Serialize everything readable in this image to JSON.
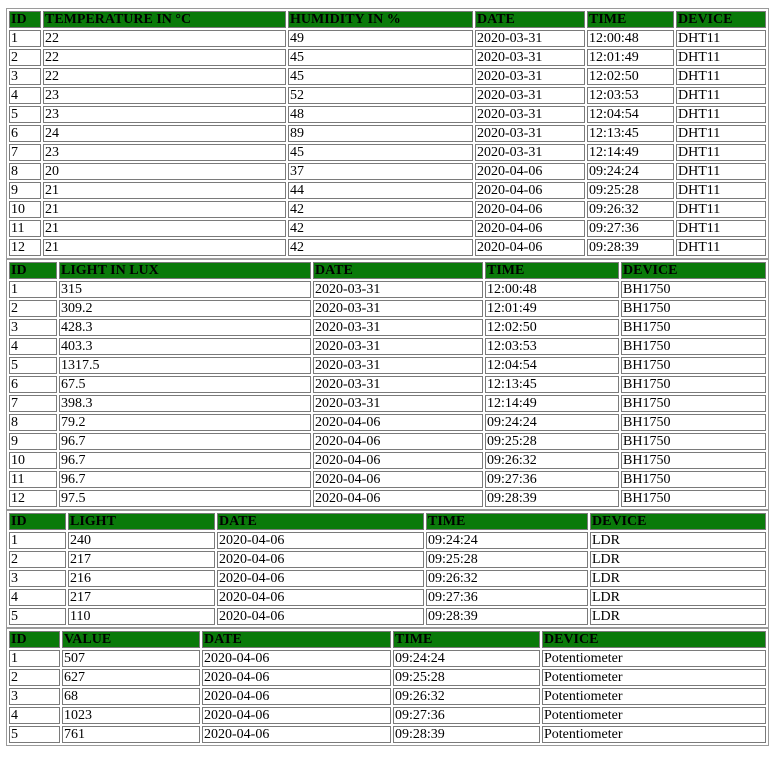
{
  "colors": {
    "header_bg": "#0a7a0a",
    "cell_bg": "#ffffff"
  },
  "tables": [
    {
      "device_type": "dht11",
      "widths": [
        "32px",
        "243px",
        "185px",
        "110px",
        "87px",
        "auto"
      ],
      "headers": [
        "ID",
        "TEMPERATURE IN °C",
        "HUMIDITY IN %",
        "DATE",
        "TIME",
        "DEVICE"
      ],
      "rows": [
        [
          "1",
          "22",
          "49",
          "2020-03-31",
          "12:00:48",
          "DHT11"
        ],
        [
          "2",
          "22",
          "45",
          "2020-03-31",
          "12:01:49",
          "DHT11"
        ],
        [
          "3",
          "22",
          "45",
          "2020-03-31",
          "12:02:50",
          "DHT11"
        ],
        [
          "4",
          "23",
          "52",
          "2020-03-31",
          "12:03:53",
          "DHT11"
        ],
        [
          "5",
          "23",
          "48",
          "2020-03-31",
          "12:04:54",
          "DHT11"
        ],
        [
          "6",
          "24",
          "89",
          "2020-03-31",
          "12:13:45",
          "DHT11"
        ],
        [
          "7",
          "23",
          "45",
          "2020-03-31",
          "12:14:49",
          "DHT11"
        ],
        [
          "8",
          "20",
          "37",
          "2020-04-06",
          "09:24:24",
          "DHT11"
        ],
        [
          "9",
          "21",
          "44",
          "2020-04-06",
          "09:25:28",
          "DHT11"
        ],
        [
          "10",
          "21",
          "42",
          "2020-04-06",
          "09:26:32",
          "DHT11"
        ],
        [
          "11",
          "21",
          "42",
          "2020-04-06",
          "09:27:36",
          "DHT11"
        ],
        [
          "12",
          "21",
          "42",
          "2020-04-06",
          "09:28:39",
          "DHT11"
        ]
      ]
    },
    {
      "device_type": "bh1750",
      "widths": [
        "48px",
        "252px",
        "170px",
        "134px",
        "auto"
      ],
      "headers": [
        "ID",
        "LIGHT IN LUX",
        "DATE",
        "TIME",
        "DEVICE"
      ],
      "rows": [
        [
          "1",
          "315",
          "2020-03-31",
          "12:00:48",
          "BH1750"
        ],
        [
          "2",
          "309.2",
          "2020-03-31",
          "12:01:49",
          "BH1750"
        ],
        [
          "3",
          "428.3",
          "2020-03-31",
          "12:02:50",
          "BH1750"
        ],
        [
          "4",
          "403.3",
          "2020-03-31",
          "12:03:53",
          "BH1750"
        ],
        [
          "5",
          "1317.5",
          "2020-03-31",
          "12:04:54",
          "BH1750"
        ],
        [
          "6",
          "67.5",
          "2020-03-31",
          "12:13:45",
          "BH1750"
        ],
        [
          "7",
          "398.3",
          "2020-03-31",
          "12:14:49",
          "BH1750"
        ],
        [
          "8",
          "79.2",
          "2020-04-06",
          "09:24:24",
          "BH1750"
        ],
        [
          "9",
          "96.7",
          "2020-04-06",
          "09:25:28",
          "BH1750"
        ],
        [
          "10",
          "96.7",
          "2020-04-06",
          "09:26:32",
          "BH1750"
        ],
        [
          "11",
          "96.7",
          "2020-04-06",
          "09:27:36",
          "BH1750"
        ],
        [
          "12",
          "97.5",
          "2020-04-06",
          "09:28:39",
          "BH1750"
        ]
      ]
    },
    {
      "device_type": "ldr",
      "widths": [
        "57px",
        "147px",
        "207px",
        "162px",
        "auto"
      ],
      "headers": [
        "ID",
        "LIGHT",
        "DATE",
        "TIME",
        "DEVICE"
      ],
      "rows": [
        [
          "1",
          "240",
          "2020-04-06",
          "09:24:24",
          "LDR"
        ],
        [
          "2",
          "217",
          "2020-04-06",
          "09:25:28",
          "LDR"
        ],
        [
          "3",
          "216",
          "2020-04-06",
          "09:26:32",
          "LDR"
        ],
        [
          "4",
          "217",
          "2020-04-06",
          "09:27:36",
          "LDR"
        ],
        [
          "5",
          "110",
          "2020-04-06",
          "09:28:39",
          "LDR"
        ]
      ]
    },
    {
      "device_type": "potentiometer",
      "widths": [
        "51px",
        "138px",
        "189px",
        "147px",
        "auto"
      ],
      "headers": [
        "ID",
        "VALUE",
        "DATE",
        "TIME",
        "DEVICE"
      ],
      "rows": [
        [
          "1",
          "507",
          "2020-04-06",
          "09:24:24",
          "Potentiometer"
        ],
        [
          "2",
          "627",
          "2020-04-06",
          "09:25:28",
          "Potentiometer"
        ],
        [
          "3",
          "68",
          "2020-04-06",
          "09:26:32",
          "Potentiometer"
        ],
        [
          "4",
          "1023",
          "2020-04-06",
          "09:27:36",
          "Potentiometer"
        ],
        [
          "5",
          "761",
          "2020-04-06",
          "09:28:39",
          "Potentiometer"
        ]
      ]
    }
  ]
}
